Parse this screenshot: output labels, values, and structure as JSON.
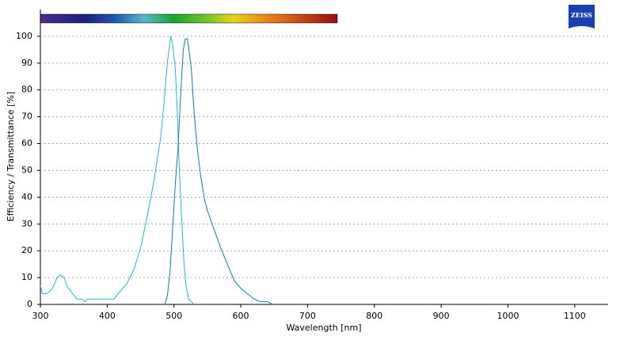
{
  "chart_data": {
    "type": "line",
    "logo": "ZEISS",
    "x_label": "Wavelength [nm]",
    "y_label": "Efficiency / Transmittance [%]",
    "xlim": [
      300,
      1150
    ],
    "ylim": [
      0,
      110
    ],
    "xticks": [
      300,
      400,
      500,
      600,
      700,
      800,
      900,
      1000,
      1100
    ],
    "yticks": [
      0,
      10,
      20,
      30,
      40,
      50,
      60,
      70,
      80,
      90,
      100
    ],
    "grid": true,
    "series": [
      {
        "color": "#2bb5df",
        "x": [
          300,
          303,
          310,
          318,
          325,
          330,
          335,
          340,
          348,
          355,
          362,
          367,
          370,
          380,
          390,
          400,
          410,
          420,
          430,
          440,
          450,
          460,
          470,
          480,
          485,
          490,
          495,
          498,
          502,
          505,
          508,
          512,
          515,
          518,
          522,
          530
        ],
        "values": [
          7,
          4,
          4,
          6,
          10,
          11,
          10,
          7,
          4,
          2,
          2,
          1,
          2,
          2,
          2,
          2,
          2,
          5,
          8,
          13,
          21,
          33,
          46,
          62,
          75,
          90,
          100,
          97,
          88,
          72,
          50,
          30,
          15,
          7,
          2,
          0
        ]
      },
      {
        "color": "#127ea8",
        "x": [
          486,
          490,
          494,
          498,
          502,
          506,
          510,
          514,
          517,
          520,
          523,
          526,
          530,
          535,
          540,
          545,
          550,
          560,
          570,
          580,
          590,
          600,
          610,
          620,
          630,
          640,
          648
        ],
        "values": [
          0,
          3,
          12,
          28,
          45,
          58,
          78,
          95,
          99,
          99,
          94,
          88,
          72,
          58,
          48,
          40,
          35,
          28,
          21,
          15,
          9,
          6,
          4,
          2,
          1,
          1,
          0
        ]
      }
    ]
  }
}
